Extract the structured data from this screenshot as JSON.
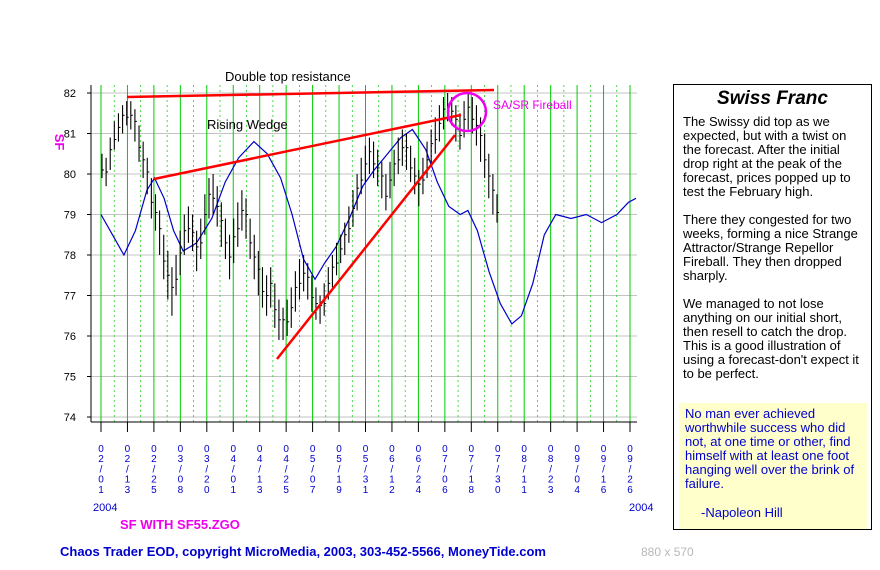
{
  "chart_data": {
    "type": "line",
    "symbol": "SF",
    "y_ticks": [
      "82",
      "81",
      "80",
      "79",
      "78",
      "77",
      "76",
      "75",
      "74"
    ],
    "ylim": [
      74,
      82
    ],
    "x_dates": [
      "02/01",
      "02/13",
      "02/25",
      "03/08",
      "03/20",
      "04/01",
      "04/13",
      "04/25",
      "05/07",
      "05/19",
      "05/31",
      "06/12",
      "06/24",
      "07/06",
      "07/18",
      "07/30",
      "08/11",
      "08/23",
      "09/04",
      "09/16",
      "09/26"
    ],
    "x_year_start": "2004",
    "x_year_end": "2004",
    "annotations": {
      "double_top": "Double top resistance",
      "rising_wedge": "Rising Wedge",
      "fireball": "SA/SR Fireball"
    },
    "price_bars": [
      [
        80.5,
        79.9
      ],
      [
        80.4,
        79.7
      ],
      [
        80.9,
        80.1
      ],
      [
        81.3,
        80.6
      ],
      [
        81.5,
        80.8
      ],
      [
        81.7,
        81.0
      ],
      [
        81.8,
        81.2
      ],
      [
        81.8,
        81.1
      ],
      [
        81.6,
        80.8
      ],
      [
        81.2,
        80.3
      ],
      [
        80.8,
        79.9
      ],
      [
        80.4,
        79.5
      ],
      [
        79.9,
        78.9
      ],
      [
        79.5,
        78.6
      ],
      [
        79.1,
        78.0
      ],
      [
        78.5,
        77.4
      ],
      [
        78.1,
        76.9
      ],
      [
        77.7,
        76.5
      ],
      [
        78.0,
        77.0
      ],
      [
        78.6,
        77.5
      ],
      [
        79.0,
        78.0
      ],
      [
        79.2,
        78.3
      ],
      [
        79.0,
        78.1
      ],
      [
        78.6,
        77.6
      ],
      [
        78.9,
        77.9
      ],
      [
        79.5,
        78.5
      ],
      [
        79.9,
        78.9
      ],
      [
        80.0,
        79.0
      ],
      [
        79.7,
        78.7
      ],
      [
        79.3,
        78.2
      ],
      [
        78.9,
        77.9
      ],
      [
        78.5,
        77.4
      ],
      [
        78.9,
        77.8
      ],
      [
        79.3,
        78.2
      ],
      [
        79.6,
        78.6
      ],
      [
        79.4,
        78.4
      ],
      [
        78.9,
        77.9
      ],
      [
        78.5,
        77.4
      ],
      [
        78.1,
        77.0
      ],
      [
        77.7,
        76.7
      ],
      [
        77.5,
        76.5
      ],
      [
        77.7,
        76.7
      ],
      [
        77.3,
        76.2
      ],
      [
        76.9,
        75.9
      ],
      [
        76.7,
        75.9
      ],
      [
        76.9,
        76.0
      ],
      [
        77.2,
        76.2
      ],
      [
        77.6,
        76.6
      ],
      [
        77.9,
        76.9
      ],
      [
        78.0,
        77.1
      ],
      [
        77.8,
        76.9
      ],
      [
        77.5,
        76.6
      ],
      [
        77.2,
        76.4
      ],
      [
        77.0,
        76.3
      ],
      [
        77.3,
        76.5
      ],
      [
        77.7,
        76.9
      ],
      [
        78.0,
        77.2
      ],
      [
        78.3,
        77.5
      ],
      [
        78.5,
        77.8
      ],
      [
        78.8,
        78.0
      ],
      [
        79.2,
        78.3
      ],
      [
        79.6,
        78.7
      ],
      [
        80.0,
        79.1
      ],
      [
        80.4,
        79.5
      ],
      [
        80.7,
        79.8
      ],
      [
        80.9,
        80.0
      ],
      [
        80.8,
        79.9
      ],
      [
        80.6,
        79.7
      ],
      [
        80.3,
        79.4
      ],
      [
        80.0,
        79.1
      ],
      [
        80.3,
        79.4
      ],
      [
        80.6,
        79.7
      ],
      [
        80.9,
        80.0
      ],
      [
        81.1,
        80.2
      ],
      [
        81.0,
        80.1
      ],
      [
        80.7,
        79.8
      ],
      [
        80.4,
        79.5
      ],
      [
        80.1,
        79.2
      ],
      [
        80.4,
        79.5
      ],
      [
        80.8,
        79.9
      ],
      [
        81.1,
        80.2
      ],
      [
        81.4,
        80.5
      ],
      [
        81.7,
        80.8
      ],
      [
        81.9,
        81.1
      ],
      [
        82.0,
        81.3
      ],
      [
        81.9,
        81.2
      ],
      [
        81.7,
        80.8
      ],
      [
        81.5,
        80.6
      ],
      [
        81.8,
        80.9
      ],
      [
        82.0,
        81.1
      ],
      [
        81.9,
        81.0
      ],
      [
        81.7,
        80.7
      ],
      [
        81.4,
        80.3
      ],
      [
        81.0,
        79.9
      ],
      [
        80.5,
        79.4
      ],
      [
        80.0,
        79.0
      ],
      [
        79.5,
        78.8
      ]
    ],
    "cycle_line": [
      [
        0,
        79.0
      ],
      [
        6,
        78.5
      ],
      [
        12,
        78.0
      ],
      [
        18,
        78.6
      ],
      [
        24,
        79.6
      ],
      [
        28,
        79.9
      ],
      [
        33,
        79.4
      ],
      [
        38,
        78.6
      ],
      [
        43,
        78.1
      ],
      [
        50,
        78.3
      ],
      [
        58,
        78.9
      ],
      [
        65,
        79.8
      ],
      [
        72,
        80.4
      ],
      [
        80,
        80.8
      ],
      [
        87,
        80.5
      ],
      [
        94,
        79.9
      ],
      [
        100,
        79.0
      ],
      [
        106,
        77.9
      ],
      [
        112,
        77.4
      ],
      [
        117,
        77.8
      ],
      [
        123,
        78.2
      ],
      [
        130,
        78.9
      ],
      [
        137,
        79.7
      ],
      [
        143,
        80.1
      ],
      [
        150,
        80.5
      ],
      [
        157,
        80.9
      ],
      [
        163,
        81.1
      ],
      [
        170,
        80.6
      ],
      [
        176,
        79.8
      ],
      [
        182,
        79.2
      ],
      [
        188,
        79.0
      ],
      [
        192,
        79.1
      ],
      [
        197,
        78.6
      ],
      [
        203,
        77.6
      ],
      [
        209,
        76.8
      ],
      [
        215,
        76.3
      ],
      [
        220,
        76.5
      ],
      [
        226,
        77.3
      ],
      [
        232,
        78.5
      ],
      [
        238,
        79.0
      ],
      [
        246,
        78.9
      ],
      [
        254,
        79.0
      ],
      [
        262,
        78.8
      ],
      [
        270,
        79.0
      ],
      [
        276,
        79.3
      ],
      [
        280,
        79.4
      ]
    ]
  },
  "panel": {
    "title": "Swiss Franc",
    "p1": "The Swissy did top as we expected, but with a twist on the forecast. After the initial drop right at the peak of the forecast, prices popped up to test the February high.",
    "p2": "There they congested for two weeks, forming a nice Strange Attractor/Strange Repellor Fireball. They then dropped sharply.",
    "p3": "We managed to not lose anything on our initial short, then resell to catch the drop. This is a good illustration of using a forecast-don't expect it to be perfect."
  },
  "quote": {
    "text": "No man ever achieved worthwhile success who did not, at one time or other, find himself with at least one foot hanging well over the brink of failure.",
    "author": "-Napoleon Hill"
  },
  "footer": {
    "study": "SF WITH SF55.ZGO",
    "copyright": "Chaos Trader EOD, copyright MicroMedia, 2003, 303-452-5566, MoneyTide.com",
    "size": "880 x 570"
  },
  "colors": {
    "grid_green": "#00cc00",
    "price_bar": "#000000",
    "cycle_line": "#0000cc",
    "trend_line": "#ff0000",
    "fireball": "#ee00ee",
    "axis_label": "#0000cc"
  }
}
